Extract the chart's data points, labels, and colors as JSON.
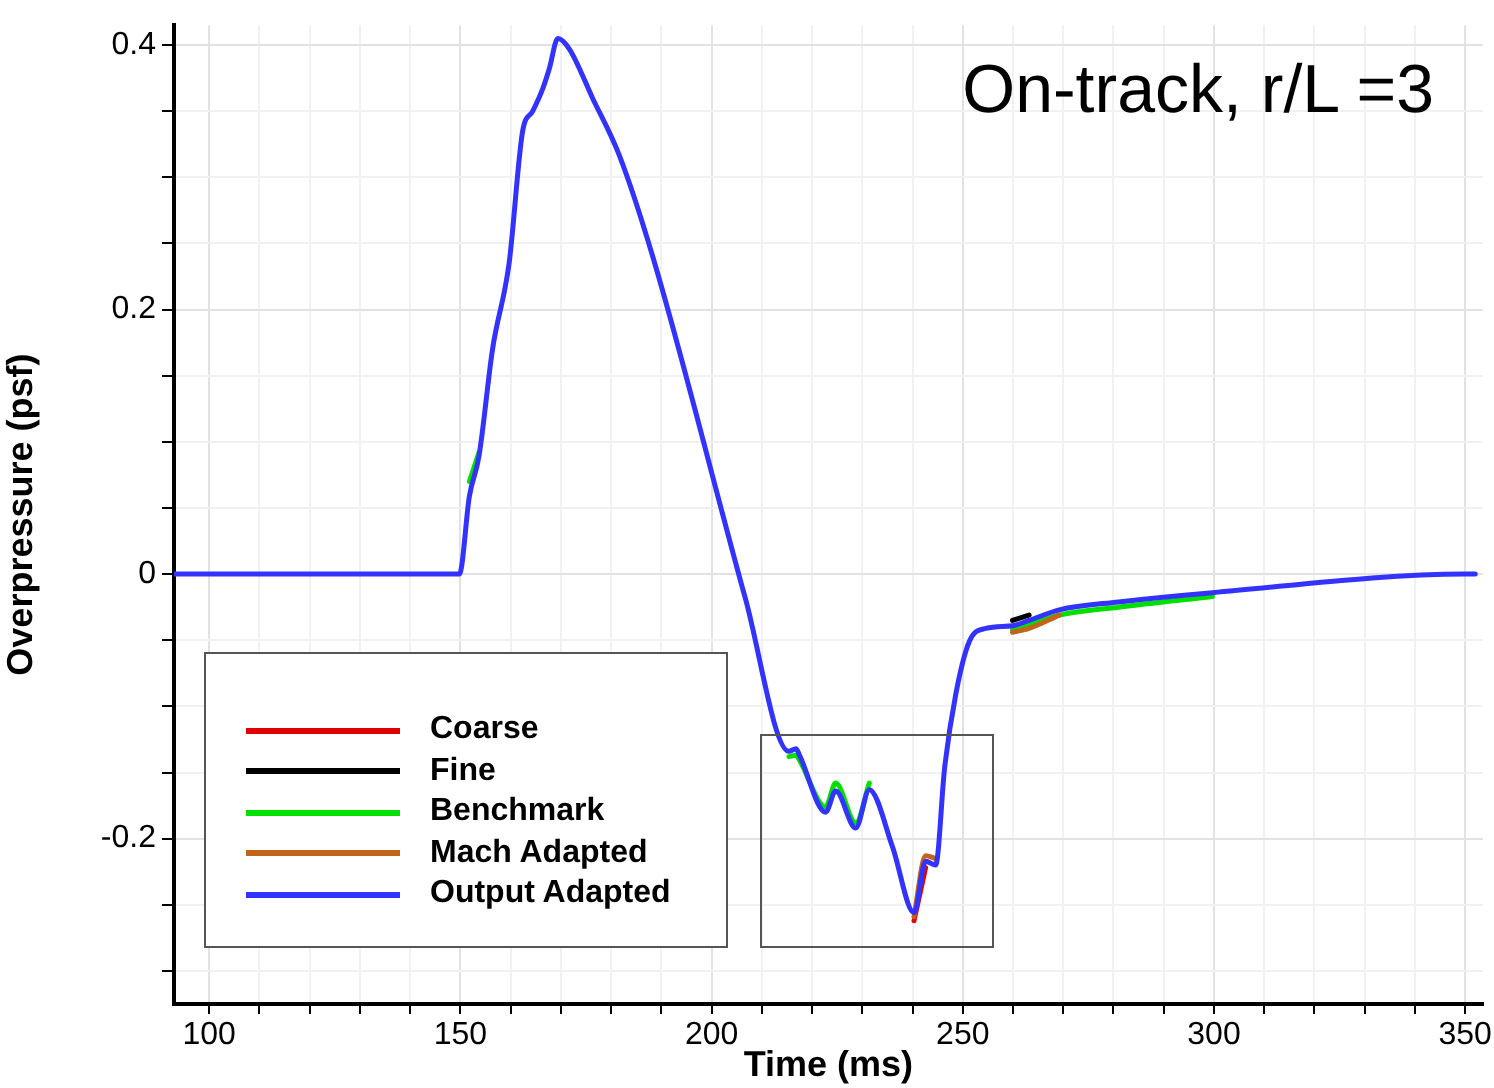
{
  "chart_data": {
    "type": "line",
    "xlabel": "Time (ms)",
    "ylabel": "Overpressure (psf)",
    "annotations": [
      "On-track, r/L =3"
    ],
    "x": [
      93,
      149,
      149.8,
      151.8,
      153.7,
      156.4,
      159.7,
      162.4,
      164.4,
      166.4,
      167.7,
      169.4,
      171.7,
      176.3,
      181.6,
      188.3,
      206.7,
      215.4,
      216.8,
      217.4,
      222.7,
      224.7,
      228.7,
      231.4,
      236,
      240.3,
      242.6,
      244.6,
      246.4,
      248.6,
      251.3,
      254.6,
      259.9,
      263.2,
      269.2,
      281,
      299.7,
      350,
      352
    ],
    "series": [
      {
        "name": "Coarse",
        "color": "#e00000",
        "values": [
          null,
          null,
          null,
          null,
          null,
          null,
          null,
          null,
          null,
          null,
          null,
          null,
          null,
          null,
          null,
          null,
          null,
          null,
          null,
          null,
          null,
          null,
          null,
          null,
          null,
          -0.262,
          -0.222,
          null,
          null,
          null,
          null,
          null,
          null,
          null,
          null,
          null,
          null,
          null,
          null
        ]
      },
      {
        "name": "Fine",
        "color": "#000000",
        "values": [
          null,
          null,
          null,
          null,
          null,
          null,
          null,
          null,
          null,
          null,
          null,
          null,
          null,
          null,
          null,
          null,
          null,
          null,
          null,
          null,
          null,
          null,
          null,
          null,
          null,
          null,
          null,
          null,
          null,
          null,
          null,
          null,
          -0.035,
          -0.031,
          null,
          null,
          null,
          null,
          null
        ]
      },
      {
        "name": "Benchmark",
        "color": "#00e000",
        "values": [
          null,
          null,
          null,
          0.07,
          0.092,
          null,
          null,
          null,
          null,
          null,
          null,
          null,
          null,
          null,
          null,
          null,
          null,
          -0.138,
          -0.137,
          -0.14,
          -0.176,
          -0.158,
          -0.188,
          -0.158,
          null,
          null,
          null,
          null,
          null,
          null,
          null,
          null,
          -0.042,
          -0.038,
          -0.031,
          -0.025,
          -0.017,
          null,
          null
        ]
      },
      {
        "name": "Mach Adapted",
        "color": "#c0651a",
        "values": [
          null,
          null,
          null,
          null,
          null,
          null,
          null,
          null,
          null,
          null,
          null,
          null,
          null,
          null,
          null,
          null,
          null,
          null,
          null,
          null,
          null,
          null,
          null,
          null,
          null,
          -0.259,
          -0.213,
          -0.215,
          null,
          null,
          null,
          null,
          -0.044,
          -0.041,
          -0.031,
          null,
          null,
          null,
          null
        ]
      },
      {
        "name": "Output Adapted",
        "color": "#3333ff",
        "values": [
          0,
          0,
          0,
          0.059,
          0.089,
          0.17,
          0.235,
          0.335,
          0.35,
          0.367,
          0.382,
          0.405,
          0.397,
          0.36,
          0.317,
          0.24,
          -0.018,
          -0.134,
          -0.132,
          -0.136,
          -0.18,
          -0.164,
          -0.192,
          -0.163,
          -0.206,
          -0.256,
          -0.217,
          -0.22,
          -0.146,
          -0.091,
          -0.051,
          -0.041,
          -0.039,
          -0.035,
          -0.027,
          -0.021,
          -0.014,
          0,
          0
        ]
      }
    ],
    "xlim": [
      93,
      353.5
    ],
    "ylim": [
      -0.325,
      0.415
    ],
    "xticks": [
      100,
      {
        "value": 110,
        "label": null
      },
      {
        "value": 120,
        "label": null
      },
      {
        "value": 130,
        "label": null
      },
      {
        "value": 140,
        "label": null
      },
      150,
      {
        "value": 160,
        "label": null
      },
      {
        "value": 170,
        "label": null
      },
      {
        "value": 180,
        "label": null
      },
      {
        "value": 190,
        "label": null
      },
      200,
      {
        "value": 210,
        "label": null
      },
      {
        "value": 220,
        "label": null
      },
      {
        "value": 230,
        "label": null
      },
      {
        "value": 240,
        "label": null
      },
      250,
      {
        "value": 260,
        "label": null
      },
      {
        "value": 270,
        "label": null
      },
      {
        "value": 280,
        "label": null
      },
      {
        "value": 290,
        "label": null
      },
      300,
      {
        "value": 310,
        "label": null
      },
      {
        "value": 320,
        "label": null
      },
      {
        "value": 330,
        "label": null
      },
      {
        "value": 340,
        "label": null
      },
      350
    ],
    "yticks": [
      {
        "value": -0.3,
        "label": null
      },
      {
        "value": -0.25,
        "label": null
      },
      -0.2,
      {
        "value": -0.15,
        "label": null
      },
      {
        "value": -0.1,
        "label": null
      },
      {
        "value": -0.05,
        "label": null
      },
      0,
      {
        "value": 0.05,
        "label": null
      },
      {
        "value": 0.1,
        "label": null
      },
      {
        "value": 0.15,
        "label": null
      },
      0.2,
      {
        "value": 0.25,
        "label": null
      },
      {
        "value": 0.3,
        "label": null
      },
      {
        "value": 0.35,
        "label": null
      },
      0.4
    ],
    "grid": true,
    "legend": "bottom left",
    "marker": "none",
    "line_style": "solid"
  }
}
